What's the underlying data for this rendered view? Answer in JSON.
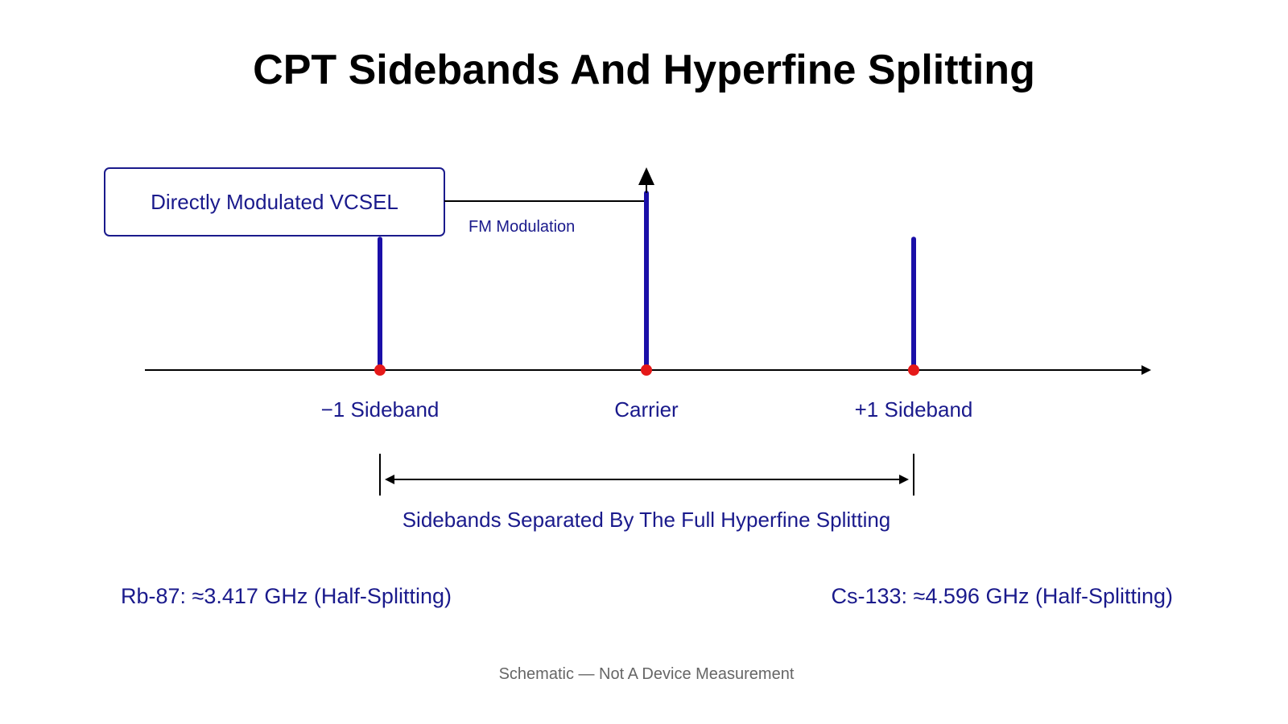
{
  "title": "CPT Sidebands And Hyperfine Splitting",
  "source_box": {
    "label": "Directly Modulated VCSEL"
  },
  "modulation_label": "FM Modulation",
  "spectrum": {
    "lines": [
      {
        "label": "−1 Sideband",
        "relative_amplitude": 0.74
      },
      {
        "label": "Carrier",
        "relative_amplitude": 1.0
      },
      {
        "label": "+1 Sideband",
        "relative_amplitude": 0.74
      }
    ]
  },
  "separation_label": "Sidebands Separated By The Full Hyperfine Splitting",
  "notes": {
    "rb": "Rb-87: ≈3.417 GHz (Half-Splitting)",
    "cs": "Cs-133: ≈4.596 GHz (Half-Splitting)"
  },
  "footer": "Schematic — Not A Device Measurement",
  "colors": {
    "line": "#1a0fa8",
    "marker": "#e51919",
    "text": "#1a1a8c",
    "axis": "#000000",
    "footer": "#666666"
  }
}
